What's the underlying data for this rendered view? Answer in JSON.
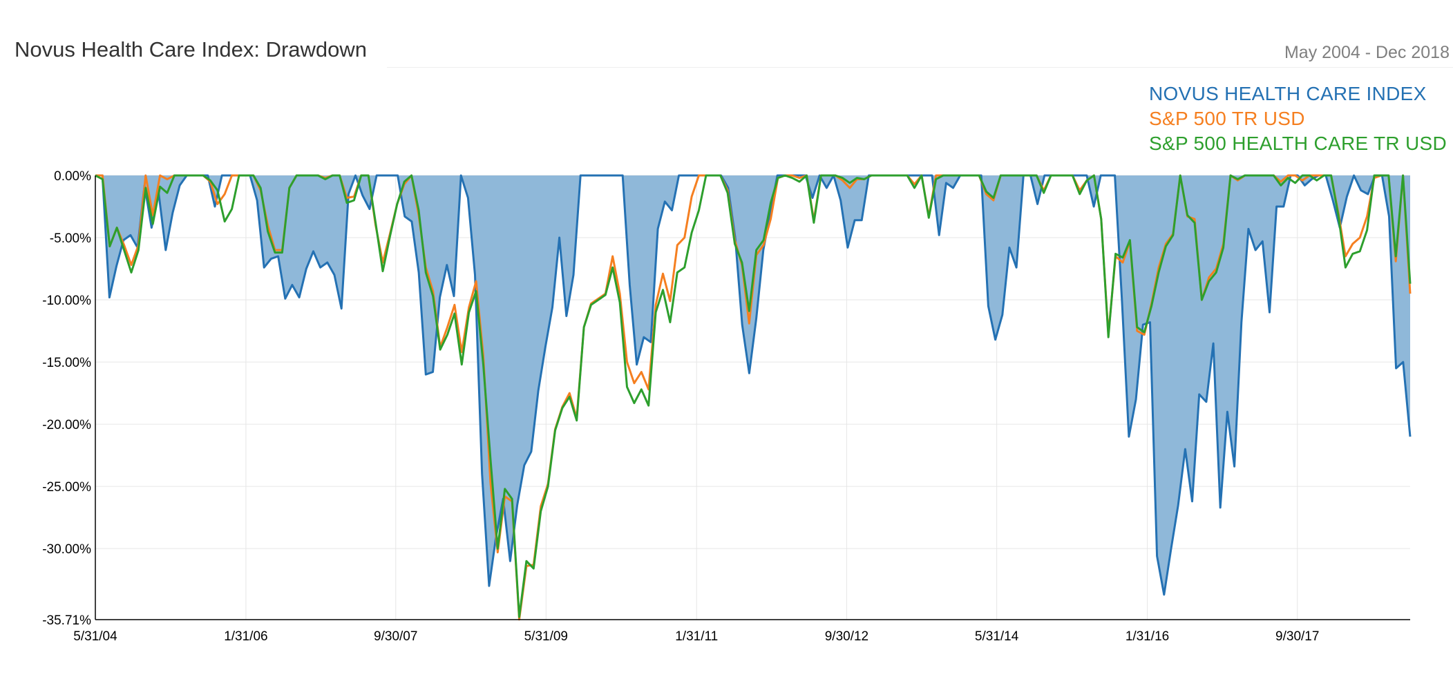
{
  "header": {
    "title": "Novus Health Care Index: Drawdown",
    "date_range": "May 2004 - Dec 2018"
  },
  "colors": {
    "index": "#2471b3",
    "index_fill": "#8fb8d9",
    "sp500": "#f57f20",
    "sp500_health": "#2d9f2d",
    "grid": "#e6e6e6"
  },
  "chart_data": {
    "type": "area",
    "title": "Novus Health Care Index: Drawdown",
    "subtitle": "May 2004 - Dec 2018",
    "xlabel": "",
    "ylabel": "",
    "ylim": [
      -35.71,
      0
    ],
    "grid": true,
    "legend_position": "top-right",
    "x_start": "5/31/04",
    "x_end": "12/31/18",
    "x_ticks": [
      "5/31/04",
      "1/31/06",
      "9/30/07",
      "5/31/09",
      "1/31/11",
      "9/30/12",
      "5/31/14",
      "1/31/16",
      "9/30/17"
    ],
    "y_ticks": [
      "0.00%",
      "-5.00%",
      "-10.00%",
      "-15.00%",
      "-20.00%",
      "-25.00%",
      "-30.00%",
      "-35.71%"
    ],
    "series": [
      {
        "name": "NOVUS HEALTH CARE INDEX",
        "fill": true,
        "values": [
          0,
          0,
          -9.8,
          -7.3,
          -5.2,
          -4.8,
          -5.8,
          -0.8,
          -4.2,
          -1.4,
          -6.0,
          -3.0,
          -0.8,
          0,
          0,
          0,
          0,
          -2.5,
          0,
          0,
          0,
          0,
          0,
          -2.0,
          -7.4,
          -6.7,
          -6.5,
          -9.9,
          -8.8,
          -9.8,
          -7.5,
          -6.1,
          -7.4,
          -7.0,
          -8.0,
          -10.7,
          -1.5,
          0,
          -1.6,
          -2.7,
          0,
          0,
          0,
          0,
          -3.3,
          -3.7,
          -7.8,
          -16.0,
          -15.8,
          -9.8,
          -7.2,
          -9.7,
          0,
          -1.8,
          -8.0,
          -24.0,
          -33.0,
          -29.0,
          -26.0,
          -31.0,
          -26.5,
          -23.3,
          -22.2,
          -17.3,
          -13.8,
          -10.6,
          -5.0,
          -11.3,
          -8.0,
          0,
          0,
          0,
          0,
          0,
          0,
          0,
          -8.8,
          -15.2,
          -13.0,
          -13.4,
          -4.3,
          -2.1,
          -2.8,
          0,
          0,
          0,
          0,
          0,
          0,
          0,
          -1.0,
          -5.0,
          -12.0,
          -15.9,
          -11.5,
          -6.0,
          -3.0,
          0,
          0,
          0,
          0,
          0,
          -1.8,
          0,
          -1.0,
          0,
          -2.0,
          -5.8,
          -3.6,
          -3.6,
          0,
          0,
          0,
          0,
          0,
          0,
          0,
          0,
          0,
          0,
          -4.8,
          -0.6,
          -1.0,
          0,
          0,
          0,
          0,
          -10.5,
          -13.2,
          -11.2,
          -5.8,
          -7.4,
          0,
          0,
          -2.3,
          0,
          0,
          0,
          0,
          0,
          0,
          0,
          -2.5,
          0,
          0,
          0,
          -10.0,
          -21.0,
          -18.0,
          -12.0,
          -11.8,
          -30.6,
          -33.7,
          -30.0,
          -26.5,
          -22.0,
          -26.2,
          -17.6,
          -18.2,
          -13.5,
          -26.7,
          -19.0,
          -23.4,
          -11.8,
          -4.3,
          -6.0,
          -5.3,
          -11.0,
          -2.5,
          -2.5,
          0,
          0,
          -0.8,
          -0.3,
          0,
          0,
          -2.0,
          -4.2,
          -1.7,
          0,
          -1.2,
          -1.5,
          0,
          0,
          -3.3,
          -15.5,
          -15.0,
          -21.0
        ]
      },
      {
        "name": "S&P 500 TR USD",
        "fill": false,
        "values": [
          0,
          0,
          -5.7,
          -4.2,
          -5.6,
          -7.2,
          -5.6,
          0,
          -3.2,
          0,
          -0.3,
          0,
          0,
          0,
          0,
          0,
          -0.5,
          -2.3,
          -1.5,
          0,
          0,
          0,
          0,
          -1.2,
          -4.0,
          -6.0,
          -6.0,
          -1.0,
          0,
          0,
          0,
          0,
          -0.2,
          0,
          0,
          -1.8,
          -1.7,
          0,
          0,
          -4.0,
          -7.0,
          -4.7,
          -2.3,
          -0.7,
          0,
          -3.2,
          -7.4,
          -9.3,
          -13.8,
          -12.2,
          -10.4,
          -14.2,
          -10.6,
          -8.5,
          -14.5,
          -24.7,
          -30.3,
          -25.8,
          -26.2,
          -35.7,
          -31.4,
          -31.3,
          -26.6,
          -24.8,
          -20.4,
          -18.6,
          -17.5,
          -19.5,
          -12.2,
          -10.3,
          -9.9,
          -9.5,
          -6.5,
          -9.5,
          -15.0,
          -16.7,
          -15.8,
          -17.2,
          -10.4,
          -7.9,
          -10.1,
          -5.6,
          -5.0,
          -1.7,
          0,
          0,
          0,
          0,
          -1.2,
          -5.2,
          -7.2,
          -11.9,
          -6.4,
          -5.6,
          -3.5,
          -0.2,
          0,
          0,
          -0.2,
          0,
          -3.6,
          0,
          0,
          0,
          -0.4,
          -1.0,
          -0.3,
          -0.3,
          0,
          0,
          0,
          0,
          0,
          0,
          -0.7,
          0,
          -3.3,
          0,
          0,
          0,
          0,
          0,
          0,
          0,
          -1.5,
          -2.0,
          0,
          0,
          0,
          0,
          0,
          0,
          -1.2,
          0,
          0,
          0,
          0,
          -1.2,
          -0.4,
          0,
          -3.5,
          -12.8,
          -6.5,
          -7.0,
          -5.3,
          -12.5,
          -12.8,
          -10.3,
          -7.4,
          -5.5,
          -4.7,
          0,
          -3.3,
          -3.5,
          -10.0,
          -8.2,
          -7.5,
          -5.5,
          0,
          -0.4,
          0,
          0,
          0,
          0,
          0,
          -0.5,
          0,
          0,
          -0.4,
          0,
          0,
          0,
          0,
          -3.0,
          -6.5,
          -5.5,
          -5.0,
          -3.3,
          -0.2,
          0,
          0,
          -6.9,
          0,
          -9.5
        ]
      },
      {
        "name": "S&P 500 HEALTH CARE TR USD",
        "fill": false,
        "values": [
          0,
          -0.3,
          -5.7,
          -4.2,
          -6.0,
          -7.8,
          -6.0,
          -1.0,
          -3.9,
          -0.9,
          -1.4,
          0,
          0,
          0,
          0,
          0,
          -0.4,
          -1.2,
          -3.7,
          -2.7,
          0,
          0,
          0,
          -1.0,
          -4.5,
          -6.2,
          -6.2,
          -1.0,
          0,
          0,
          0,
          0,
          -0.3,
          0,
          0,
          -2.2,
          -2.0,
          0,
          0,
          -3.8,
          -7.7,
          -4.9,
          -2.3,
          -0.5,
          0,
          -2.8,
          -7.8,
          -9.7,
          -14.0,
          -12.8,
          -11.1,
          -15.2,
          -11.0,
          -9.3,
          -15.2,
          -22.8,
          -30.0,
          -25.2,
          -26.0,
          -35.5,
          -31.0,
          -31.6,
          -27.0,
          -25.0,
          -20.5,
          -18.7,
          -17.8,
          -19.7,
          -12.2,
          -10.4,
          -10.0,
          -9.6,
          -7.4,
          -10.2,
          -17.0,
          -18.3,
          -17.2,
          -18.5,
          -11.0,
          -9.2,
          -11.8,
          -7.8,
          -7.4,
          -4.6,
          -2.8,
          0,
          0,
          0,
          -1.4,
          -5.5,
          -7.0,
          -10.9,
          -6.0,
          -5.2,
          -2.2,
          -0.2,
          0,
          -0.2,
          -0.5,
          0,
          -3.8,
          0,
          0,
          0,
          -0.2,
          -0.6,
          -0.2,
          -0.3,
          0,
          0,
          0,
          0,
          0,
          0,
          -1.0,
          0,
          -3.4,
          -0.3,
          0,
          0,
          0,
          0,
          0,
          0,
          -1.3,
          -1.8,
          0,
          0,
          0,
          0,
          0,
          0,
          -1.4,
          0,
          0,
          0,
          0,
          -1.5,
          -0.4,
          0,
          -3.5,
          -13.0,
          -6.3,
          -6.6,
          -5.2,
          -12.2,
          -12.6,
          -10.5,
          -7.8,
          -5.7,
          -4.8,
          0,
          -3.2,
          -3.8,
          -10.0,
          -8.5,
          -7.8,
          -5.8,
          0,
          -0.3,
          0,
          0,
          0,
          0,
          0,
          -0.8,
          -0.2,
          -0.6,
          0,
          0,
          -0.4,
          0,
          0,
          -3.2,
          -7.4,
          -6.3,
          -6.1,
          -4.4,
          0,
          0,
          0,
          -6.5,
          0,
          -8.7
        ]
      }
    ]
  }
}
